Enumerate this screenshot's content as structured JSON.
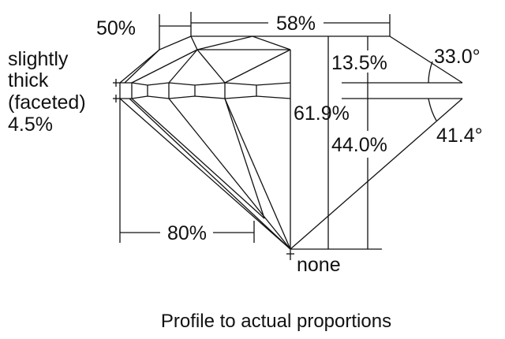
{
  "labels": {
    "crown_angle_pct": "50%",
    "table": "58%",
    "girdle_line1": "slightly",
    "girdle_line2": "thick",
    "girdle_line3": "(faceted)",
    "girdle_line4": "4.5%",
    "crown_height": "13.5%",
    "crown_angle": "33.0°",
    "total_depth": "61.9%",
    "pavilion_depth": "44.0%",
    "pavilion_angle": "41.4°",
    "lower_half": "80%",
    "culet": "none"
  },
  "caption": "Profile to actual proportions"
}
